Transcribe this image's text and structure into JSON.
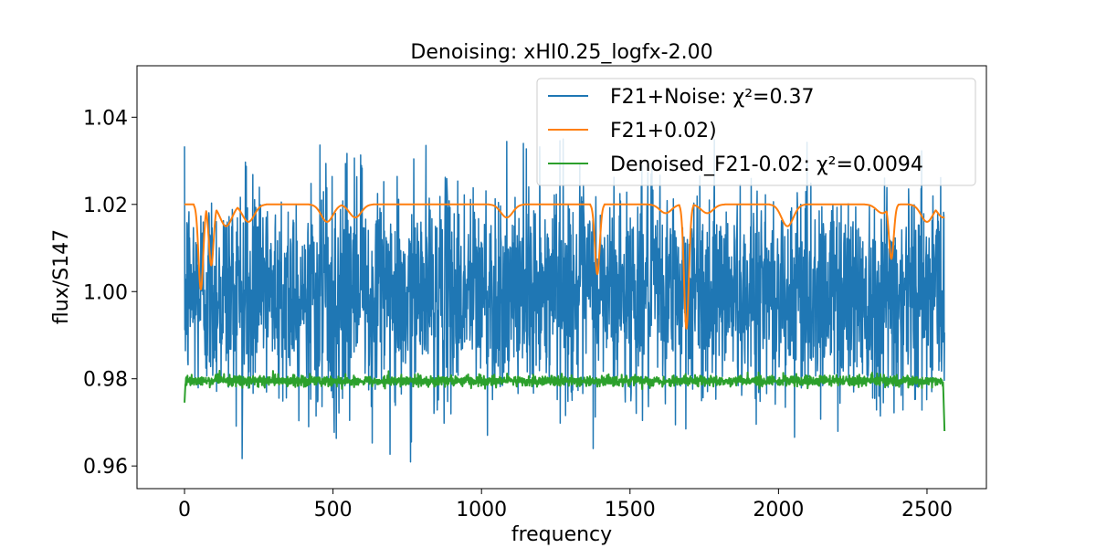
{
  "chart_data": {
    "type": "line",
    "title": "Denoising: xHI0.25_logfx-2.00",
    "xlabel": "frequency",
    "ylabel": "flux/S147",
    "xlim": [
      -160,
      2700
    ],
    "ylim": [
      0.9548,
      1.0518
    ],
    "x_ticks": [
      0,
      500,
      1000,
      1500,
      2000,
      2500
    ],
    "x_tick_labels": [
      "0",
      "500",
      "1000",
      "1500",
      "2000",
      "2500"
    ],
    "y_ticks": [
      0.96,
      0.98,
      1.0,
      1.02,
      1.04
    ],
    "y_tick_labels": [
      "0.96",
      "0.98",
      "1.00",
      "1.02",
      "1.04"
    ],
    "grid": false,
    "legend_position": "top-right",
    "n_points": 2560,
    "series": [
      {
        "name": "F21+Noise: χ²=0.37",
        "color": "#1f77b4",
        "description_values": {
          "center": 1.0,
          "spread": 0.012,
          "min": 0.959,
          "max": 1.035
        }
      },
      {
        "name": "F21+0.02)",
        "color": "#ff7f0e",
        "baseline": 1.02,
        "dips": [
          {
            "x": 55,
            "y": 1.0005
          },
          {
            "x": 90,
            "y": 1.006
          },
          {
            "x": 140,
            "y": 1.015
          },
          {
            "x": 215,
            "y": 1.016
          },
          {
            "x": 480,
            "y": 1.016
          },
          {
            "x": 575,
            "y": 1.017
          },
          {
            "x": 1085,
            "y": 1.017
          },
          {
            "x": 1390,
            "y": 1.004
          },
          {
            "x": 1620,
            "y": 1.018
          },
          {
            "x": 1690,
            "y": 0.9915
          },
          {
            "x": 1760,
            "y": 1.018
          },
          {
            "x": 2030,
            "y": 1.015
          },
          {
            "x": 2350,
            "y": 1.018
          },
          {
            "x": 2380,
            "y": 1.0075
          },
          {
            "x": 2500,
            "y": 1.016
          },
          {
            "x": 2555,
            "y": 1.017
          }
        ]
      },
      {
        "name": "Denoised_F21-0.02: χ²=0.0094",
        "color": "#2ca02c",
        "baseline": 0.9795,
        "dips": [
          {
            "x": 0,
            "y": 0.975
          },
          {
            "x": 2557,
            "y": 0.968
          }
        ]
      }
    ]
  }
}
